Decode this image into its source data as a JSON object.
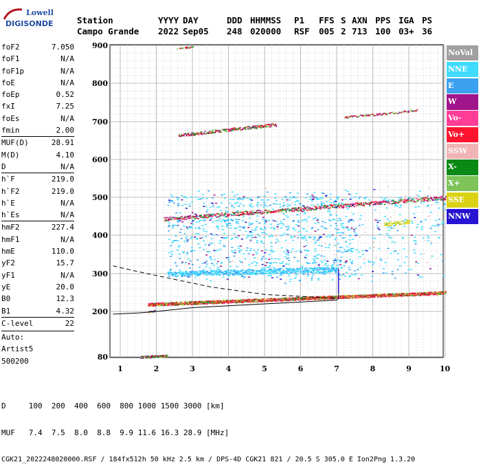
{
  "logo": {
    "line1": "Lowell",
    "line2": "DIGISONDE"
  },
  "header": {
    "labels": [
      "Station",
      "YYYY",
      "DAY",
      "DDD",
      "HHMMSS",
      "P1",
      "FFS",
      "S",
      "AXN",
      "PPS",
      "IGA",
      "PS"
    ],
    "values": [
      "Campo Grande",
      "2022",
      "Sep05",
      "248",
      "020000",
      "RSF",
      "005",
      "2",
      "713",
      "100",
      "03+",
      "36"
    ]
  },
  "params": [
    {
      "k": "foF2",
      "v": "7.050"
    },
    {
      "k": "foF1",
      "v": "N/A"
    },
    {
      "k": "foF1p",
      "v": "N/A"
    },
    {
      "k": "foE",
      "v": "N/A"
    },
    {
      "k": "foEp",
      "v": "0.52"
    },
    {
      "k": "fxI",
      "v": "7.25"
    },
    {
      "k": "foEs",
      "v": "N/A"
    },
    {
      "k": "fmin",
      "v": "2.00"
    },
    {
      "k": "MUF(D)",
      "v": "28.91"
    },
    {
      "k": "M(D)",
      "v": "4.10"
    },
    {
      "k": "D",
      "v": "N/A"
    },
    {
      "k": "h`F",
      "v": "219.0"
    },
    {
      "k": "h`F2",
      "v": "219.0"
    },
    {
      "k": "h`E",
      "v": "N/A"
    },
    {
      "k": "h`Es",
      "v": "N/A"
    },
    {
      "k": "hmF2",
      "v": "227.4"
    },
    {
      "k": "hmF1",
      "v": "N/A"
    },
    {
      "k": "hmE",
      "v": "110.0"
    },
    {
      "k": "yF2",
      "v": "15.7"
    },
    {
      "k": "yF1",
      "v": "N/A"
    },
    {
      "k": "yE",
      "v": "20.0"
    },
    {
      "k": "B0",
      "v": "12.3"
    },
    {
      "k": "B1",
      "v": "4.32"
    },
    {
      "k": "C-level",
      "v": "22"
    }
  ],
  "auto": [
    "Auto:",
    "Artist5",
    "500200"
  ],
  "legend": [
    {
      "label": "NoVal",
      "color": "#a0a0a0"
    },
    {
      "label": "NNE",
      "color": "#40dcff"
    },
    {
      "label": "E",
      "color": "#3ca0f0"
    },
    {
      "label": "W",
      "color": "#a0148c"
    },
    {
      "label": "Vo-",
      "color": "#ff3c96"
    },
    {
      "label": "Vo+",
      "color": "#ff1430"
    },
    {
      "label": "SSW",
      "color": "#f0b4b4"
    },
    {
      "label": "X-",
      "color": "#0a8a14"
    },
    {
      "label": "X+",
      "color": "#7dc35a"
    },
    {
      "label": "SSE",
      "color": "#dcd214"
    },
    {
      "label": "NNW",
      "color": "#2814d2"
    }
  ],
  "footer": {
    "d_row": "D     100  200  400  600  800 1000 1500 3000 [km]",
    "muf_row": "MUF   7.4  7.5  8.0  8.8  9.9 11.6 16.3 28.9 [MHz]",
    "file_row": "CGK21_2022248020000.RSF / 184fx512h 50 kHz 2.5 km / DPS-4D CGK21 821 / 20.5 S 305.0 E Ion2Png 1.3.20"
  },
  "chart_data": {
    "type": "scatter",
    "xlabel": "",
    "ylabel": "",
    "xlim": [
      0.8,
      10
    ],
    "ylim": [
      80,
      900
    ],
    "x_ticks": [
      "1",
      "2",
      "3",
      "4",
      "5",
      "6",
      "7",
      "8",
      "9",
      "10"
    ],
    "y_ticks": [
      "80",
      "200",
      "300",
      "400",
      "500",
      "600",
      "700",
      "800",
      "900"
    ],
    "grid": true,
    "traces": [
      {
        "name": "F-trace O",
        "color": "#d2142d",
        "points": [
          [
            1.75,
            219
          ],
          [
            3,
            223
          ],
          [
            4,
            228
          ],
          [
            5,
            232
          ],
          [
            6,
            235
          ],
          [
            7,
            238
          ],
          [
            8,
            242
          ],
          [
            9,
            247
          ],
          [
            10,
            250
          ]
        ]
      },
      {
        "name": "F-trace 2hop",
        "color": "#d2142d",
        "points": [
          [
            2.2,
            443
          ],
          [
            4,
            450
          ],
          [
            6,
            465
          ],
          [
            8,
            478
          ],
          [
            10,
            500
          ]
        ]
      },
      {
        "name": "F-trace 3hop",
        "color": "#d2142d",
        "points": [
          [
            2.6,
            665
          ],
          [
            3.5,
            678
          ],
          [
            5.3,
            693
          ]
        ]
      },
      {
        "name": "E region",
        "color": "#3fa02d",
        "points": [
          [
            1.55,
            82
          ],
          [
            2.3,
            84
          ]
        ]
      },
      {
        "name": "Es cyan",
        "color": "#40dcff",
        "points": [
          [
            2,
            300
          ],
          [
            3,
            303
          ],
          [
            4,
            305
          ],
          [
            5,
            306
          ],
          [
            6,
            310
          ],
          [
            7,
            312
          ]
        ]
      }
    ],
    "profile_solid": [
      [
        0.8,
        193
      ],
      [
        1.5,
        196
      ],
      [
        2,
        200
      ],
      [
        3,
        210
      ],
      [
        4,
        215
      ],
      [
        5,
        220
      ],
      [
        6,
        225
      ],
      [
        7,
        230
      ],
      [
        7.05,
        235
      ],
      [
        7.05,
        310
      ]
    ],
    "profile_dashed": [
      [
        0.8,
        320
      ],
      [
        1.5,
        305
      ],
      [
        2.5,
        285
      ],
      [
        3.5,
        265
      ],
      [
        5,
        245
      ],
      [
        6,
        240
      ],
      [
        7,
        235
      ]
    ]
  }
}
